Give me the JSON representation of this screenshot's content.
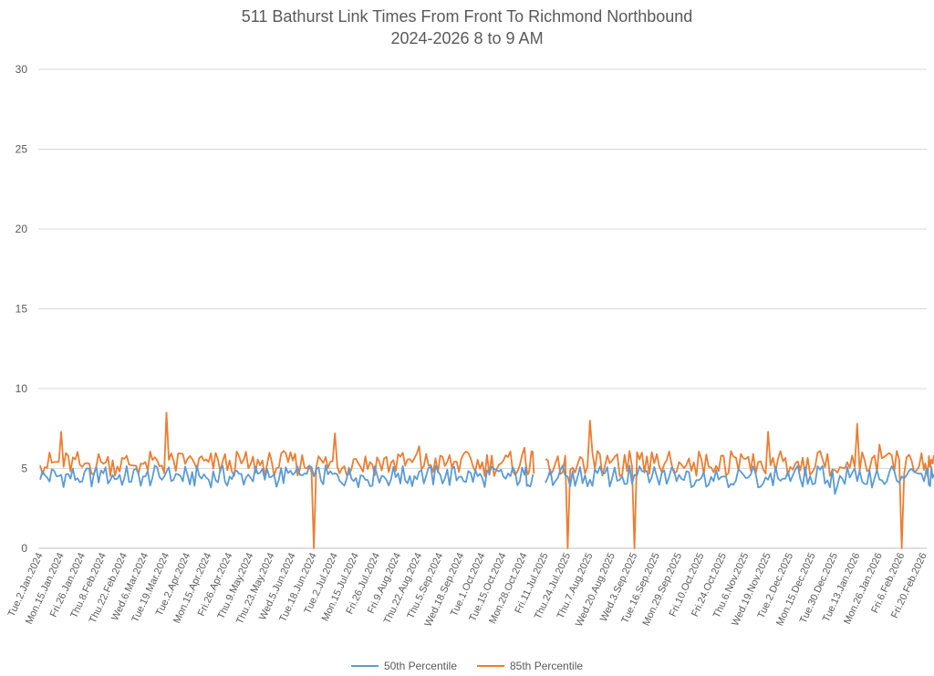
{
  "chart_data": {
    "type": "line",
    "title": "511 Bathurst Link Times From Front To Richmond Northbound",
    "subtitle": "2024-2026 8 to 9 AM",
    "ylim": [
      0,
      30
    ],
    "yticks": [
      0,
      5,
      10,
      15,
      20,
      25,
      30
    ],
    "grid": true,
    "legend_position": "bottom",
    "colors": {
      "p50": "#5b9bd5",
      "p85": "#ed7d31",
      "grid": "#d9d9d9",
      "text": "#595959"
    },
    "x_tick_labels": [
      "Tue.2.Jan.2024",
      "Mon.15.Jan.2024",
      "Fri.26.Jan.2024",
      "Thu.8.Feb.2024",
      "Thu.22.Feb.2024",
      "Wed.6.Mar.2024",
      "Tue.19.Mar.2024",
      "Tue.2.Apr.2024",
      "Mon.15.Apr.2024",
      "Fri.26.Apr.2024",
      "Thu.9.May.2024",
      "Thu.23.May.2024",
      "Wed.5.Jun.2024",
      "Tue.18.Jun.2024",
      "Tue.2.Jul.2024",
      "Mon.15.Jul.2024",
      "Fri.26.Jul.2024",
      "Fri.9.Aug.2024",
      "Thu.22.Aug.2024",
      "Thu.5.Sep.2024",
      "Wed.18.Sep.2024",
      "Tue.1.Oct.2024",
      "Tue.15.Oct.2024",
      "Mon.28.Oct.2024",
      "Fri.11.Jul.2025",
      "Thu.24.Jul.2025",
      "Thu.7.Aug.2025",
      "Wed.20.Aug.2025",
      "Wed.3.Sep.2025",
      "Tue.16.Sep.2025",
      "Mon.29.Sep.2025",
      "Fri.10.Oct.2025",
      "Fri.24.Oct.2025",
      "Thu.6.Nov.2025",
      "Wed.19.Nov.2025",
      "Tue.2.Dec.2025",
      "Mon.15.Dec.2025",
      "Tue.30.Dec.2025",
      "Tue.13.Jan.2026",
      "Mon.26.Jan.2026",
      "Fri.6.Feb.2026",
      "Fri.20.Feb.2026"
    ],
    "series": [
      {
        "name": "50th Percentile",
        "values_by_tick": [
          4.3,
          4.6,
          4.2,
          4.7,
          4.4,
          4.5,
          4.8,
          4.6,
          4.3,
          4.5,
          4.4,
          4.5,
          4.6,
          4.5,
          4.7,
          4.4,
          4.6,
          4.7,
          4.8,
          4.6,
          4.5,
          4.4,
          4.5,
          4.6,
          4.1,
          4.5,
          4.3,
          4.4,
          4.6,
          4.5,
          4.6,
          4.4,
          4.5,
          4.4,
          4.3,
          4.2,
          4.0,
          3.4,
          4.2,
          4.3,
          4.5,
          4.2
        ],
        "notable": [
          {
            "near": "Wed.6.Mar.2024",
            "value": 5.3
          },
          {
            "near": "Tue.2.Jul.2024",
            "value": 6.1
          },
          {
            "near": "Fri.11.Jul.2025",
            "value": 6.4
          },
          {
            "near": "Tue.30.Dec.2025",
            "value": 2.7
          }
        ]
      },
      {
        "name": "85th Percentile",
        "values_by_tick": [
          5.2,
          7.3,
          5.1,
          5.3,
          5.6,
          5.4,
          8.5,
          5.6,
          5.4,
          5.5,
          5.3,
          5.4,
          5.5,
          0.0,
          7.2,
          5.6,
          5.7,
          5.9,
          6.4,
          5.8,
          5.6,
          5.4,
          5.5,
          6.3,
          5.6,
          0.0,
          8.0,
          5.5,
          0.0,
          5.9,
          5.4,
          5.6,
          5.8,
          5.6,
          7.3,
          5.1,
          4.8,
          4.9,
          7.8,
          6.5,
          0.0,
          4.9
        ],
        "notable": [
          {
            "near": "Mon.15.Jan.2024",
            "value": 7.3
          },
          {
            "near": "Tue.19.Mar.2024",
            "value": 8.5
          },
          {
            "near": "Wed.5.Jun.2024",
            "value": 0
          },
          {
            "near": "Fri.11.Jul.2025",
            "value": 8.0
          },
          {
            "near": "Wed.3.Sep.2025",
            "value": 0
          },
          {
            "near": "Wed.19.Nov.2025",
            "value": 7.3
          },
          {
            "near": "Tue.13.Jan.2026",
            "value": 7.8
          },
          {
            "near": "Fri.6.Feb.2026",
            "value": 0
          }
        ]
      }
    ]
  }
}
